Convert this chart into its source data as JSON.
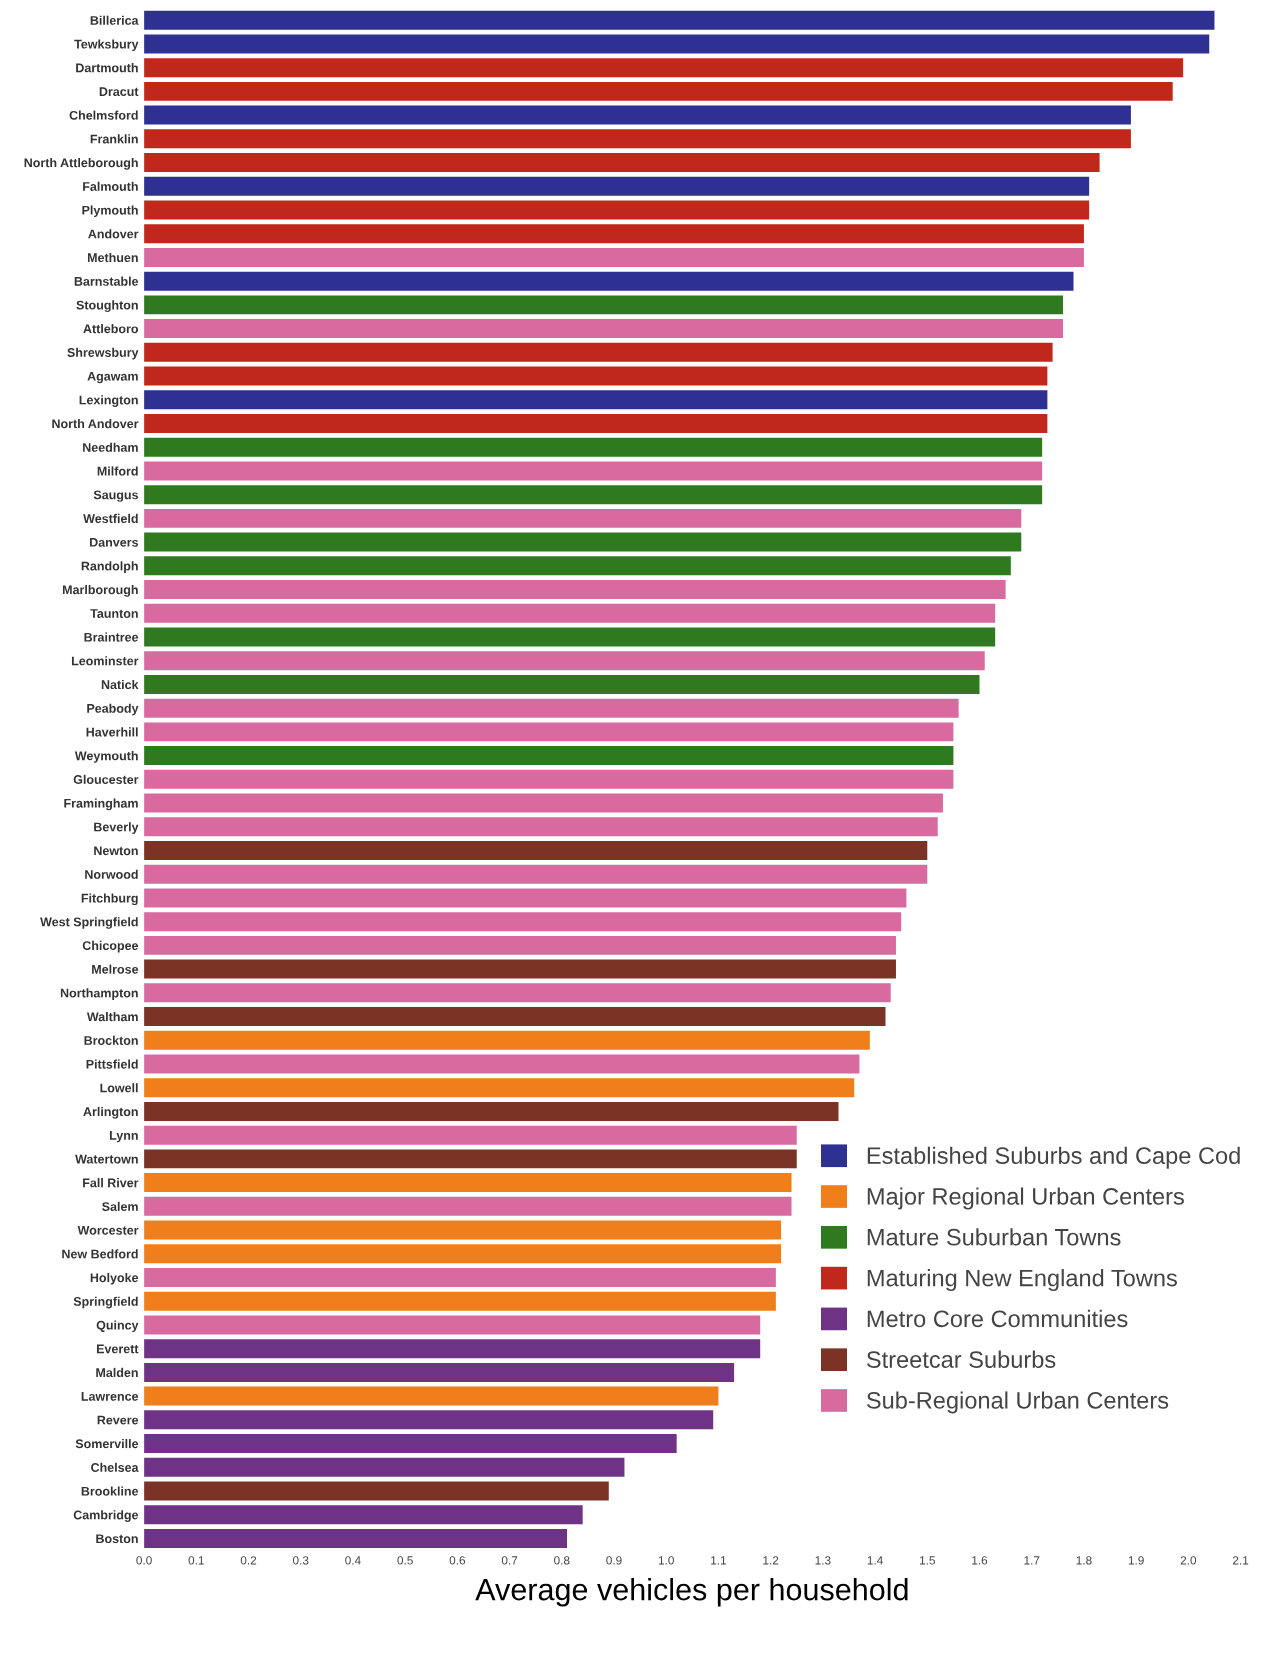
{
  "chart_data": {
    "type": "bar",
    "orientation": "horizontal",
    "xlabel": "Average vehicles per household",
    "categories": [
      "Billerica",
      "Tewksbury",
      "Dartmouth",
      "Dracut",
      "Chelmsford",
      "Franklin",
      "North Attleborough",
      "Falmouth",
      "Plymouth",
      "Andover",
      "Methuen",
      "Barnstable",
      "Stoughton",
      "Attleboro",
      "Shrewsbury",
      "Agawam",
      "Lexington",
      "North Andover",
      "Needham",
      "Milford",
      "Saugus",
      "Westfield",
      "Danvers",
      "Randolph",
      "Marlborough",
      "Taunton",
      "Braintree",
      "Leominster",
      "Natick",
      "Peabody",
      "Haverhill",
      "Weymouth",
      "Gloucester",
      "Framingham",
      "Beverly",
      "Newton",
      "Norwood",
      "Fitchburg",
      "West Springfield",
      "Chicopee",
      "Melrose",
      "Northampton",
      "Waltham",
      "Brockton",
      "Pittsfield",
      "Lowell",
      "Arlington",
      "Lynn",
      "Watertown",
      "Fall River",
      "Salem",
      "Worcester",
      "New Bedford",
      "Holyoke",
      "Springfield",
      "Quincy",
      "Everett",
      "Malden",
      "Lawrence",
      "Revere",
      "Somerville",
      "Chelsea",
      "Brookline",
      "Cambridge",
      "Boston"
    ],
    "series": [
      {
        "name": "Established Suburbs and Cape Cod",
        "color": "#2e3192",
        "values": [
          2.05,
          2.04,
          null,
          null,
          1.89,
          null,
          null,
          1.81,
          null,
          null,
          null,
          1.78,
          null,
          null,
          null,
          null,
          1.73,
          null,
          null,
          null,
          null,
          null,
          null,
          null,
          null,
          null,
          null,
          null,
          null,
          null,
          null,
          null,
          null,
          null,
          null,
          null,
          null,
          null,
          null,
          null,
          null,
          null,
          null,
          null,
          null,
          null,
          null,
          null,
          null,
          null,
          null,
          null,
          null,
          null,
          null,
          null,
          null,
          null,
          null,
          null,
          null,
          null,
          null,
          null,
          null
        ]
      },
      {
        "name": "Major Regional Urban Centers",
        "color": "#f07f1b",
        "values": [
          null,
          null,
          null,
          null,
          null,
          null,
          null,
          null,
          null,
          null,
          null,
          null,
          null,
          null,
          null,
          null,
          null,
          null,
          null,
          null,
          null,
          null,
          null,
          null,
          null,
          null,
          null,
          null,
          null,
          null,
          null,
          null,
          null,
          null,
          null,
          null,
          null,
          null,
          null,
          null,
          null,
          null,
          null,
          1.39,
          null,
          1.36,
          null,
          null,
          null,
          1.24,
          null,
          1.22,
          1.22,
          null,
          1.21,
          null,
          null,
          null,
          1.1,
          null,
          null,
          null,
          null,
          null,
          null
        ]
      },
      {
        "name": "Mature Suburban Towns",
        "color": "#2f7a1f",
        "values": [
          null,
          null,
          null,
          null,
          null,
          null,
          null,
          null,
          null,
          null,
          null,
          null,
          1.76,
          null,
          null,
          null,
          null,
          null,
          1.72,
          null,
          1.72,
          null,
          1.68,
          1.66,
          null,
          null,
          1.63,
          null,
          1.6,
          null,
          null,
          1.55,
          null,
          null,
          null,
          null,
          null,
          null,
          null,
          null,
          null,
          null,
          null,
          null,
          null,
          null,
          null,
          null,
          null,
          null,
          null,
          null,
          null,
          null,
          null,
          null,
          null,
          null,
          null,
          null,
          null,
          null,
          null,
          null,
          null
        ]
      },
      {
        "name": "Maturing New England Towns",
        "color": "#c0281c",
        "values": [
          null,
          null,
          1.99,
          1.97,
          null,
          1.89,
          1.83,
          null,
          1.81,
          1.8,
          null,
          null,
          null,
          null,
          1.74,
          1.73,
          null,
          1.73,
          null,
          null,
          null,
          null,
          null,
          null,
          null,
          null,
          null,
          null,
          null,
          null,
          null,
          null,
          null,
          null,
          null,
          null,
          null,
          null,
          null,
          null,
          null,
          null,
          null,
          null,
          null,
          null,
          null,
          null,
          null,
          null,
          null,
          null,
          null,
          null,
          null,
          null,
          null,
          null,
          null,
          null,
          null,
          null,
          null,
          null,
          null
        ]
      },
      {
        "name": "Metro Core Communities",
        "color": "#6f3385",
        "values": [
          null,
          null,
          null,
          null,
          null,
          null,
          null,
          null,
          null,
          null,
          null,
          null,
          null,
          null,
          null,
          null,
          null,
          null,
          null,
          null,
          null,
          null,
          null,
          null,
          null,
          null,
          null,
          null,
          null,
          null,
          null,
          null,
          null,
          null,
          null,
          null,
          null,
          null,
          null,
          null,
          null,
          null,
          null,
          null,
          null,
          null,
          null,
          null,
          null,
          null,
          null,
          null,
          null,
          null,
          null,
          null,
          1.18,
          1.13,
          null,
          1.09,
          1.02,
          0.92,
          null,
          0.84,
          0.81
        ]
      },
      {
        "name": "Streetcar Suburbs",
        "color": "#7b3326",
        "values": [
          null,
          null,
          null,
          null,
          null,
          null,
          null,
          null,
          null,
          null,
          null,
          null,
          null,
          null,
          null,
          null,
          null,
          null,
          null,
          null,
          null,
          null,
          null,
          null,
          null,
          null,
          null,
          null,
          null,
          null,
          null,
          null,
          null,
          null,
          null,
          1.5,
          null,
          null,
          null,
          null,
          1.44,
          null,
          1.42,
          null,
          null,
          null,
          1.33,
          null,
          1.25,
          null,
          null,
          null,
          null,
          null,
          null,
          null,
          null,
          null,
          null,
          null,
          null,
          null,
          0.89,
          null,
          null
        ]
      },
      {
        "name": "Sub-Regional Urban Centers",
        "color": "#d96aa0",
        "values": [
          null,
          null,
          null,
          null,
          null,
          null,
          null,
          null,
          null,
          null,
          1.8,
          null,
          null,
          1.76,
          null,
          null,
          null,
          null,
          null,
          1.72,
          null,
          1.68,
          null,
          null,
          1.65,
          1.63,
          null,
          1.61,
          null,
          1.56,
          1.55,
          null,
          1.55,
          1.53,
          1.52,
          null,
          1.5,
          1.46,
          1.45,
          1.44,
          null,
          1.43,
          null,
          null,
          1.37,
          null,
          null,
          1.25,
          null,
          null,
          1.24,
          null,
          null,
          1.21,
          null,
          1.18,
          null,
          null,
          null,
          null,
          null,
          null,
          null,
          null,
          null
        ]
      }
    ],
    "xlim": [
      0,
      2.1
    ],
    "xticks": [
      {
        "value": 0,
        "label": "0.0"
      },
      0.1,
      0.2,
      0.3,
      0.4,
      0.5,
      0.6,
      0.7,
      0.8,
      0.9,
      {
        "value": 1,
        "label": "1.0"
      },
      1.1,
      1.2,
      1.3,
      1.4,
      1.5,
      1.6,
      1.7,
      1.8,
      1.9,
      {
        "value": 2,
        "label": "2.0"
      },
      2.1
    ],
    "grid": false,
    "legend": "bottom right"
  }
}
